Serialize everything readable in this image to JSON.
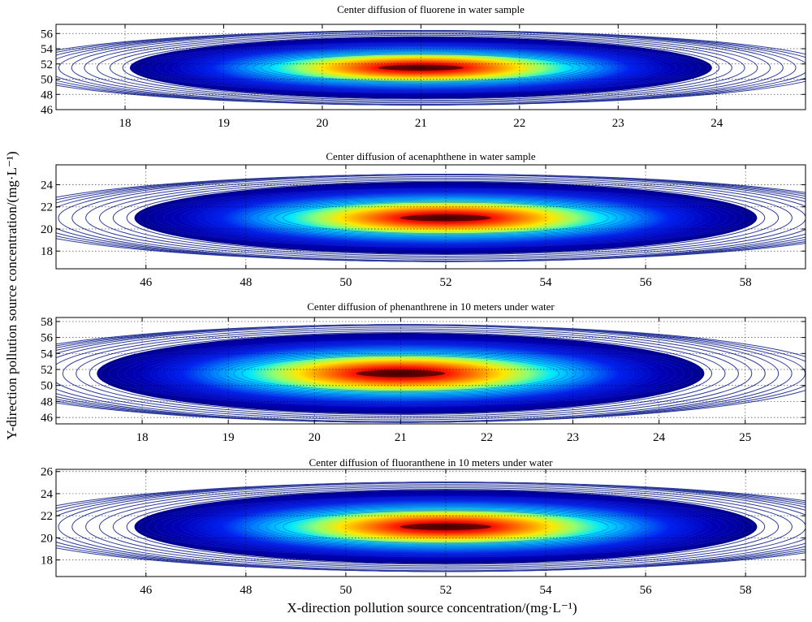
{
  "figure": {
    "ylabel": "Y-direction pollution source concentration/(mg·L⁻¹)",
    "xlabel": "X-direction pollution source concentration/(mg·L⁻¹)"
  },
  "chart_data": [
    {
      "type": "heatmap",
      "title": "Center diffusion of fluorene in water sample",
      "xlim": [
        17.3,
        24.9
      ],
      "ylim": [
        46,
        57.2
      ],
      "xticks": [
        18,
        19,
        20,
        21,
        22,
        23,
        24
      ],
      "yticks": [
        46,
        48,
        50,
        52,
        54,
        56
      ],
      "peak": {
        "x": 21,
        "y": 51.5
      },
      "spread": {
        "x": 3.6,
        "y": 5.2
      },
      "grid": true,
      "style": "filled contour (jet colormap) with blue contour lines"
    },
    {
      "type": "heatmap",
      "title": "Center diffusion of acenaphthene in water sample",
      "xlim": [
        44.2,
        59.2
      ],
      "ylim": [
        16.4,
        25.8
      ],
      "xticks": [
        46,
        48,
        50,
        52,
        54,
        56,
        58
      ],
      "yticks": [
        18,
        20,
        22,
        24
      ],
      "peak": {
        "x": 52,
        "y": 21
      },
      "spread": {
        "x": 7.6,
        "y": 4.2
      },
      "grid": true,
      "style": "filled contour (jet colormap) with blue contour lines"
    },
    {
      "type": "heatmap",
      "title": "Center diffusion of phenanthrene in 10 meters under water",
      "xlim": [
        17.0,
        25.7
      ],
      "ylim": [
        45.2,
        58.5
      ],
      "xticks": [
        18,
        19,
        20,
        21,
        22,
        23,
        24,
        25
      ],
      "yticks": [
        46,
        48,
        50,
        52,
        54,
        56,
        58
      ],
      "peak": {
        "x": 21,
        "y": 51.5
      },
      "spread": {
        "x": 4.3,
        "y": 6.5
      },
      "grid": true,
      "style": "filled contour (jet colormap) with blue contour lines"
    },
    {
      "type": "heatmap",
      "title": "Center diffusion of fluoranthene in 10 meters under water",
      "xlim": [
        44.2,
        59.2
      ],
      "ylim": [
        16.5,
        26.2
      ],
      "xticks": [
        46,
        48,
        50,
        52,
        54,
        56,
        58
      ],
      "yticks": [
        18,
        20,
        22,
        24,
        26
      ],
      "peak": {
        "x": 52,
        "y": 21
      },
      "spread": {
        "x": 7.6,
        "y": 4.3
      },
      "grid": true,
      "style": "filled contour (jet colormap) with blue contour lines"
    }
  ]
}
